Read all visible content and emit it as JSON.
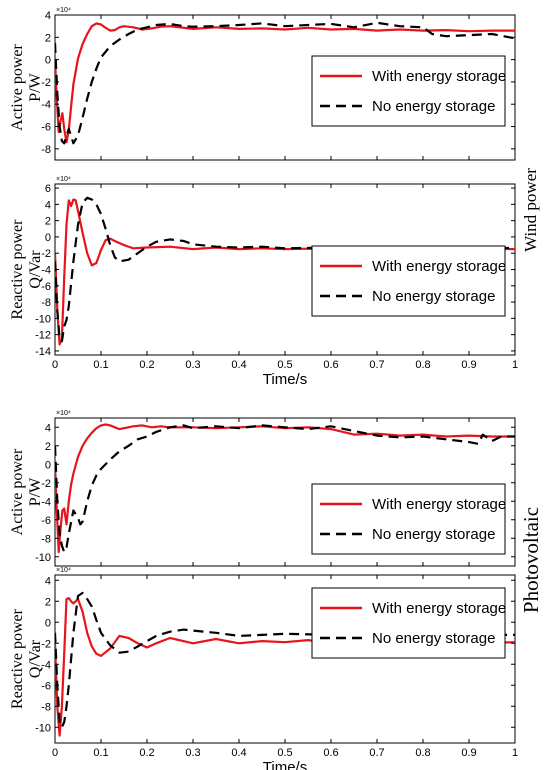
{
  "colors": {
    "with_storage": "#e8141c",
    "no_storage": "#000000"
  },
  "sections": {
    "wind": {
      "label": "Wind power"
    },
    "pv": {
      "label": "Photovoltaic"
    }
  },
  "chart_data": [
    {
      "id": "wind-active",
      "type": "line",
      "section": "Wind power",
      "ylabel": [
        "Active power",
        "P/W"
      ],
      "xlabel": "",
      "multiplier": "×10⁴",
      "xlim": [
        0,
        1
      ],
      "ylim": [
        -9,
        4
      ],
      "yticks": [
        4,
        2,
        0,
        -2,
        -4,
        -6,
        -8
      ],
      "xticks": [],
      "legend": {
        "position": "center-right",
        "entries": [
          "With energy storage",
          "No energy storage"
        ]
      },
      "series": [
        {
          "name": "With energy storage",
          "color": "#e8141c",
          "style": "solid",
          "x": [
            0,
            0.004,
            0.008,
            0.012,
            0.016,
            0.02,
            0.025,
            0.03,
            0.035,
            0.04,
            0.05,
            0.06,
            0.07,
            0.08,
            0.09,
            0.1,
            0.11,
            0.12,
            0.13,
            0.14,
            0.15,
            0.17,
            0.19,
            0.21,
            0.23,
            0.25,
            0.3,
            0.35,
            0.4,
            0.45,
            0.5,
            0.55,
            0.6,
            0.65,
            0.7,
            0.75,
            0.8,
            0.85,
            0.9,
            0.95,
            1.0
          ],
          "y": [
            0,
            -3.5,
            -6.5,
            -5.5,
            -4.8,
            -6.2,
            -7.4,
            -6.3,
            -4.2,
            -2.2,
            0.1,
            1.4,
            2.3,
            3.0,
            3.25,
            3.15,
            2.85,
            2.6,
            2.65,
            2.9,
            3.0,
            2.9,
            2.7,
            2.8,
            2.95,
            3.0,
            2.75,
            2.9,
            2.75,
            2.8,
            2.7,
            2.85,
            2.7,
            2.75,
            2.6,
            2.7,
            2.6,
            2.65,
            2.55,
            2.6,
            2.6
          ]
        },
        {
          "name": "No energy storage",
          "color": "#000000",
          "style": "dashed",
          "x": [
            0,
            0.005,
            0.01,
            0.015,
            0.02,
            0.03,
            0.04,
            0.05,
            0.06,
            0.07,
            0.08,
            0.09,
            0.1,
            0.12,
            0.14,
            0.16,
            0.18,
            0.2,
            0.22,
            0.25,
            0.28,
            0.3,
            0.35,
            0.4,
            0.45,
            0.5,
            0.55,
            0.6,
            0.65,
            0.7,
            0.75,
            0.8,
            0.82,
            0.85,
            0.9,
            0.95,
            1.0
          ],
          "y": [
            1.5,
            -3,
            -6,
            -7.3,
            -7.5,
            -6.2,
            -7.5,
            -6.8,
            -5.2,
            -3.5,
            -2.0,
            -0.8,
            0.2,
            1.2,
            1.8,
            2.3,
            2.7,
            2.9,
            3.1,
            3.2,
            3.0,
            2.95,
            3.0,
            3.1,
            3.25,
            3.0,
            3.1,
            3.2,
            2.9,
            3.3,
            3.0,
            2.9,
            2.3,
            2.1,
            2.2,
            2.3,
            1.9
          ]
        }
      ]
    },
    {
      "id": "wind-reactive",
      "type": "line",
      "section": "Wind power",
      "ylabel": [
        "Reactive power",
        "Q/Var"
      ],
      "xlabel": "Time/s",
      "multiplier": "×10⁴",
      "xlim": [
        0,
        1
      ],
      "ylim": [
        -14.5,
        6.5
      ],
      "yticks": [
        6,
        4,
        2,
        0,
        -2,
        -4,
        -6,
        -8,
        -10,
        -12,
        -14
      ],
      "xticks": [
        0,
        0.1,
        0.2,
        0.3,
        0.4,
        0.5,
        0.6,
        0.7,
        0.8,
        0.9,
        1
      ],
      "legend": {
        "position": "lower-right",
        "entries": [
          "With energy storage",
          "No energy storage"
        ]
      },
      "series": [
        {
          "name": "With energy storage",
          "color": "#e8141c",
          "style": "solid",
          "x": [
            0,
            0.005,
            0.01,
            0.015,
            0.02,
            0.025,
            0.03,
            0.035,
            0.04,
            0.045,
            0.05,
            0.06,
            0.07,
            0.08,
            0.09,
            0.1,
            0.11,
            0.12,
            0.13,
            0.15,
            0.17,
            0.2,
            0.25,
            0.3,
            0.35,
            0.4,
            0.45,
            0.5,
            0.55,
            0.6,
            0.7,
            0.8,
            0.9,
            1.0
          ],
          "y": [
            -2,
            -9,
            -13.2,
            -12.5,
            -5,
            1.5,
            4.5,
            3.8,
            4.6,
            4.5,
            3.2,
            0.5,
            -2,
            -3.5,
            -3.2,
            -1.6,
            -0.4,
            -0.2,
            -0.5,
            -1.0,
            -1.4,
            -1.3,
            -1.2,
            -1.5,
            -1.3,
            -1.5,
            -1.4,
            -1.5,
            -1.45,
            -1.5,
            -1.5,
            -1.5,
            -1.45,
            -1.5
          ]
        },
        {
          "name": "No energy storage",
          "color": "#000000",
          "style": "dashed",
          "x": [
            0,
            0.005,
            0.01,
            0.015,
            0.02,
            0.025,
            0.03,
            0.04,
            0.05,
            0.06,
            0.07,
            0.08,
            0.09,
            0.1,
            0.11,
            0.12,
            0.13,
            0.14,
            0.16,
            0.18,
            0.2,
            0.22,
            0.25,
            0.28,
            0.3,
            0.35,
            0.4,
            0.45,
            0.5,
            0.6,
            0.7,
            0.8,
            0.9,
            1.0
          ],
          "y": [
            -3,
            -9,
            -12.5,
            -12.8,
            -11,
            -10.2,
            -8.5,
            -3,
            1.5,
            4.2,
            4.8,
            4.6,
            4.0,
            2.8,
            1.0,
            -1.0,
            -2.5,
            -3.0,
            -2.8,
            -2.0,
            -1.2,
            -0.6,
            -0.3,
            -0.5,
            -0.9,
            -1.2,
            -1.3,
            -1.2,
            -1.4,
            -1.3,
            -1.4,
            -1.3,
            -1.4,
            -1.35
          ]
        }
      ]
    },
    {
      "id": "pv-active",
      "type": "line",
      "section": "Photovoltaic",
      "ylabel": [
        "Active power",
        "P/W"
      ],
      "xlabel": "",
      "multiplier": "×10⁴",
      "xlim": [
        0,
        1
      ],
      "ylim": [
        -11,
        5
      ],
      "yticks": [
        4,
        2,
        0,
        -2,
        -4,
        -6,
        -8,
        -10
      ],
      "xticks": [],
      "legend": {
        "position": "lower-right",
        "entries": [
          "With energy storage",
          "No energy storage"
        ]
      },
      "series": [
        {
          "name": "With energy storage",
          "color": "#e8141c",
          "style": "solid",
          "x": [
            0,
            0.004,
            0.008,
            0.012,
            0.016,
            0.02,
            0.025,
            0.03,
            0.035,
            0.04,
            0.05,
            0.06,
            0.07,
            0.08,
            0.09,
            0.1,
            0.11,
            0.12,
            0.13,
            0.14,
            0.15,
            0.17,
            0.19,
            0.21,
            0.23,
            0.25,
            0.3,
            0.35,
            0.4,
            0.45,
            0.5,
            0.55,
            0.6,
            0.65,
            0.7,
            0.75,
            0.8,
            0.85,
            0.9,
            0.95,
            1.0
          ],
          "y": [
            0,
            -5,
            -9.5,
            -7,
            -5,
            -4.8,
            -6.5,
            -4,
            -2.2,
            -1,
            0.8,
            2,
            2.8,
            3.4,
            3.9,
            4.2,
            4.3,
            4.2,
            4.0,
            3.8,
            3.9,
            4.1,
            4.2,
            4.0,
            4.1,
            4.0,
            4.0,
            3.9,
            4.0,
            4.1,
            3.9,
            4.0,
            3.8,
            3.2,
            3.3,
            3.1,
            3.2,
            3.0,
            3.1,
            3.0,
            3.0
          ]
        },
        {
          "name": "No energy storage",
          "color": "#000000",
          "style": "dashed",
          "x": [
            0,
            0.005,
            0.01,
            0.015,
            0.02,
            0.025,
            0.03,
            0.04,
            0.05,
            0.055,
            0.06,
            0.07,
            0.08,
            0.09,
            0.1,
            0.12,
            0.14,
            0.16,
            0.18,
            0.2,
            0.22,
            0.25,
            0.28,
            0.3,
            0.35,
            0.4,
            0.45,
            0.5,
            0.55,
            0.6,
            0.65,
            0.7,
            0.75,
            0.8,
            0.85,
            0.9,
            0.92,
            0.93,
            0.95,
            0.97,
            1.0
          ],
          "y": [
            2,
            -4,
            -7.5,
            -8.8,
            -9.5,
            -9,
            -7.5,
            -5,
            -5.8,
            -6.5,
            -6.2,
            -4,
            -2.3,
            -1.2,
            -0.5,
            0.5,
            1.4,
            2.0,
            2.7,
            3.0,
            3.5,
            4.0,
            4.2,
            3.9,
            4.1,
            3.9,
            4.2,
            4.0,
            3.8,
            4.1,
            3.6,
            3.1,
            2.9,
            3.0,
            2.7,
            2.4,
            2.2,
            3.2,
            2.5,
            3.0,
            3.0
          ]
        }
      ]
    },
    {
      "id": "pv-reactive",
      "type": "line",
      "section": "Photovoltaic",
      "ylabel": [
        "Reactive power",
        "Q/Var"
      ],
      "xlabel": "Time/s",
      "multiplier": "×10⁴",
      "xlim": [
        0,
        1
      ],
      "ylim": [
        -11.5,
        4.5
      ],
      "yticks": [
        4,
        2,
        0,
        -2,
        -4,
        -6,
        -8,
        -10
      ],
      "xticks": [
        0,
        0.1,
        0.2,
        0.3,
        0.4,
        0.5,
        0.6,
        0.7,
        0.8,
        0.9,
        1
      ],
      "legend": {
        "position": "lower-right",
        "entries": [
          "With energy storage",
          "No energy storage"
        ]
      },
      "series": [
        {
          "name": "With energy storage",
          "color": "#e8141c",
          "style": "solid",
          "x": [
            0,
            0.005,
            0.01,
            0.015,
            0.02,
            0.025,
            0.03,
            0.035,
            0.04,
            0.05,
            0.06,
            0.07,
            0.08,
            0.09,
            0.1,
            0.12,
            0.14,
            0.16,
            0.18,
            0.2,
            0.22,
            0.25,
            0.3,
            0.35,
            0.4,
            0.45,
            0.5,
            0.55,
            0.6,
            0.65,
            0.7,
            0.8,
            0.9,
            1.0
          ],
          "y": [
            -2,
            -8,
            -10.8,
            -8,
            -3,
            2.2,
            2.3,
            2.0,
            1.8,
            2.2,
            1.0,
            -1,
            -2.3,
            -3.0,
            -3.2,
            -2.5,
            -1.3,
            -1.5,
            -2.0,
            -2.4,
            -2.0,
            -1.5,
            -2.0,
            -1.6,
            -2.0,
            -1.8,
            -1.9,
            -1.7,
            -2.0,
            -1.6,
            -2.0,
            -1.9,
            -2.0,
            -1.9
          ]
        },
        {
          "name": "No energy storage",
          "color": "#000000",
          "style": "dashed",
          "x": [
            0,
            0.005,
            0.01,
            0.015,
            0.02,
            0.025,
            0.03,
            0.04,
            0.05,
            0.06,
            0.07,
            0.08,
            0.09,
            0.1,
            0.12,
            0.14,
            0.16,
            0.18,
            0.2,
            0.22,
            0.25,
            0.28,
            0.3,
            0.35,
            0.4,
            0.45,
            0.5,
            0.6,
            0.7,
            0.8,
            0.9,
            1.0
          ],
          "y": [
            -1,
            -6,
            -9.5,
            -10,
            -9.5,
            -8,
            -6,
            -1,
            2.5,
            2.8,
            2.2,
            1.5,
            0.2,
            -1,
            -2.2,
            -2.9,
            -2.8,
            -2.3,
            -1.8,
            -1.3,
            -0.9,
            -0.7,
            -0.8,
            -1.0,
            -1.3,
            -1.2,
            -1.1,
            -1.2,
            -1.2,
            -1.3,
            -1.2,
            -1.2
          ]
        }
      ]
    }
  ]
}
